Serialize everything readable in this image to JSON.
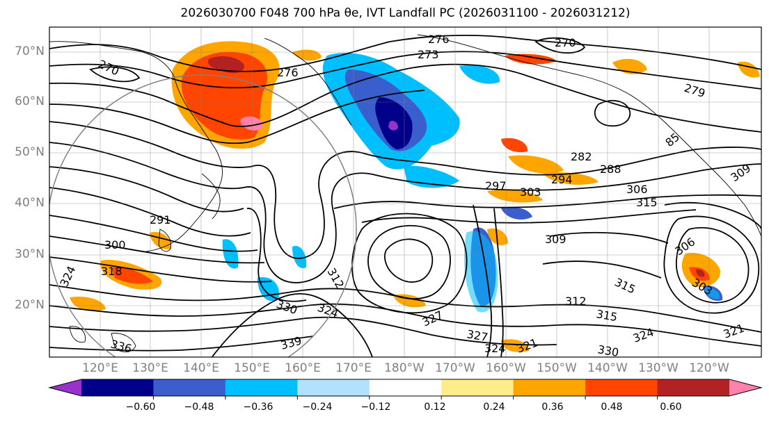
{
  "title": "2026030700 F048 700 hPa θe, IVT Landfall PC (2026031100 - 2026031212)",
  "lat_labels": [
    "70°N",
    "60°N",
    "50°N",
    "40°N",
    "30°N",
    "20°N"
  ],
  "lon_labels": [
    "120°E",
    "130°E",
    "140°E",
    "150°E",
    "160°E",
    "170°E",
    "180°W",
    "170°W",
    "160°W",
    "150°W",
    "140°W",
    "130°W",
    "120°W"
  ],
  "colorbar": {
    "colors": [
      "#9932cc",
      "#00008b",
      "#3a5fcd",
      "#00bfff",
      "#b0e2ff",
      "#ffffff",
      "#ffec8b",
      "#ffa500",
      "#ff4500",
      "#b22222",
      "#ff82ab"
    ],
    "tick_labels": [
      "−0.60",
      "−0.48",
      "−0.36",
      "−0.24",
      "−0.12",
      "0.12",
      "0.24",
      "0.36",
      "0.48",
      "0.60"
    ]
  },
  "contour_labels": [
    {
      "text": "276"
    },
    {
      "text": "273"
    },
    {
      "text": "270"
    },
    {
      "text": "270"
    },
    {
      "text": "276"
    },
    {
      "text": "279"
    },
    {
      "text": "282"
    },
    {
      "text": "288"
    },
    {
      "text": "85"
    },
    {
      "text": "309"
    },
    {
      "text": "297"
    },
    {
      "text": "303"
    },
    {
      "text": "294"
    },
    {
      "text": "306"
    },
    {
      "text": "315"
    },
    {
      "text": "291"
    },
    {
      "text": "300"
    },
    {
      "text": "309"
    },
    {
      "text": "318"
    },
    {
      "text": "306"
    },
    {
      "text": "303"
    },
    {
      "text": "315"
    },
    {
      "text": "312"
    },
    {
      "text": "312"
    },
    {
      "text": "315"
    },
    {
      "text": "330"
    },
    {
      "text": "324"
    },
    {
      "text": "327"
    },
    {
      "text": "327"
    },
    {
      "text": "324"
    },
    {
      "text": "321"
    },
    {
      "text": "339"
    },
    {
      "text": "336"
    },
    {
      "text": "330"
    },
    {
      "text": "324"
    },
    {
      "text": "321"
    },
    {
      "text": "324"
    }
  ]
}
